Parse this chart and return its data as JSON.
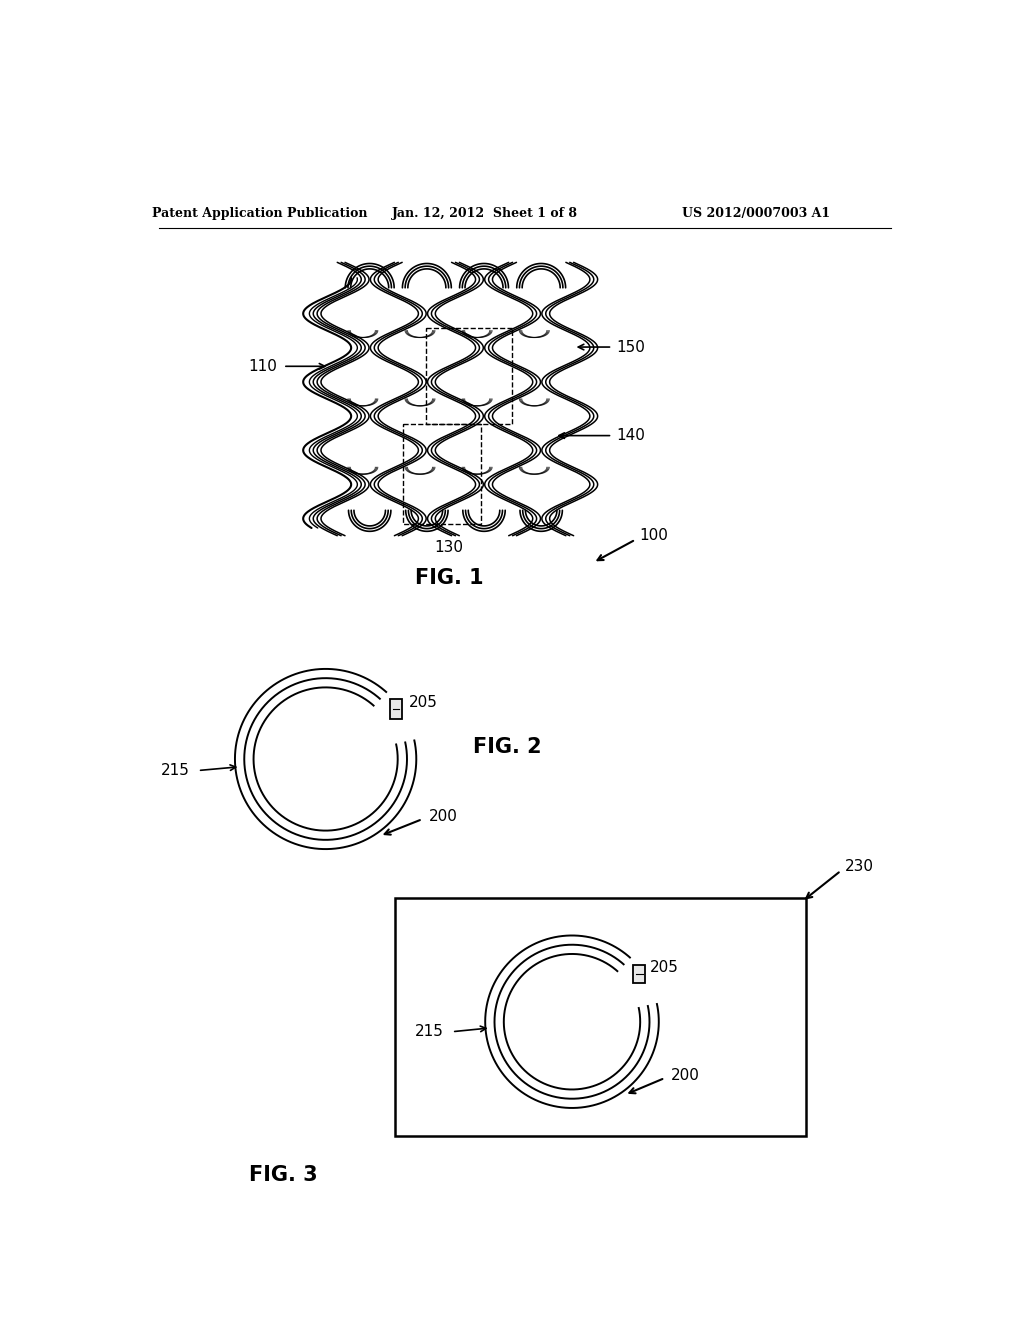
{
  "bg_color": "#ffffff",
  "header_left": "Patent Application Publication",
  "header_mid": "Jan. 12, 2012  Sheet 1 of 8",
  "header_right": "US 2012/0007003 A1",
  "fig1_label": "FIG. 1",
  "fig2_label": "FIG. 2",
  "fig3_label": "FIG. 3",
  "label_100": "100",
  "label_110": "110",
  "label_130": "130",
  "label_140": "140",
  "label_150": "150",
  "label_200": "200",
  "label_205": "205",
  "label_215": "215",
  "label_230": "230",
  "line_color": "#000000"
}
